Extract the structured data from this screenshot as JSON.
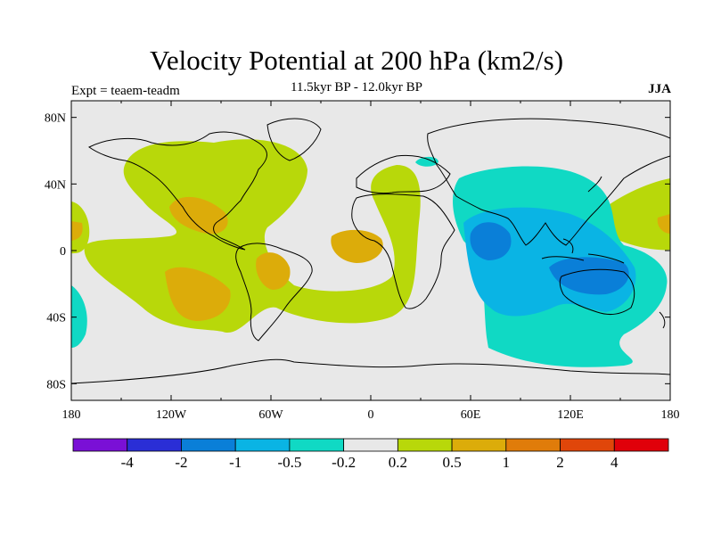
{
  "title": "Velocity Potential at 200 hPa (km2/s)",
  "subtitle": "11.5kyr BP - 12.0kyr BP",
  "left_label": "Expt = teaem-teadm",
  "right_label": "JJA",
  "colors": {
    "ocean_background": "#e8e8e8",
    "lt_neg4": "#7a10d6",
    "neg4_neg2": "#2a2ed6",
    "neg2_neg1": "#0a7fd8",
    "neg1_neg05": "#0ab4e4",
    "neg05_neg02": "#10d9c4",
    "neutral": "#e8e8e8",
    "pos02_05": "#b8d80a",
    "pos05_1": "#dcac0a",
    "pos1_2": "#e07c0a",
    "pos2_4": "#e0460a",
    "gt4": "#e0000a"
  },
  "map": {
    "lon_ticks": [
      "180",
      "120W",
      "60W",
      "0",
      "60E",
      "120E",
      "180"
    ],
    "lat_ticks": [
      "80N",
      "40N",
      "0",
      "40S",
      "80S"
    ]
  },
  "colorbar": {
    "colors": [
      "#7a10d6",
      "#2a2ed6",
      "#0a7fd8",
      "#0ab4e4",
      "#10d9c4",
      "#e8e8e8",
      "#b8d80a",
      "#dcac0a",
      "#e07c0a",
      "#e0460a",
      "#e0000a"
    ],
    "labels": [
      "-4",
      "-2",
      "-1",
      "-0.5",
      "-0.2",
      "0.2",
      "0.5",
      "1",
      "2",
      "4"
    ]
  }
}
